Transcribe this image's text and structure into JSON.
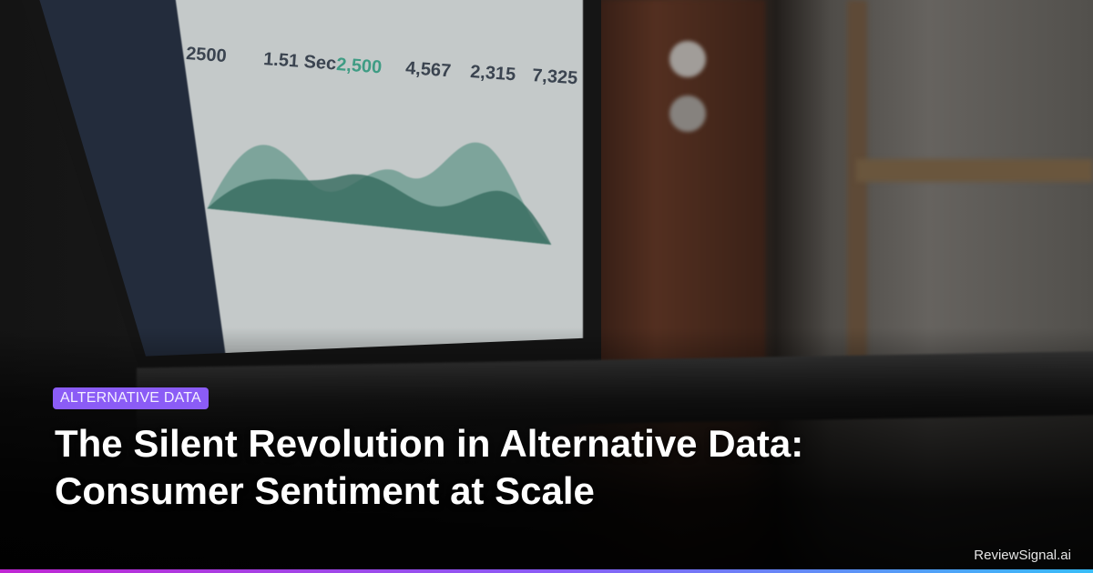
{
  "category_badge": "ALTERNATIVE DATA",
  "title_line1": "The Silent Revolution in Alternative Data:",
  "title_line2": "Consumer Sentiment at Scale",
  "brand": "ReviewSignal.ai",
  "photo_screen_kpis": [
    "2500",
    "1.51 Sec",
    "2,500",
    "4,567",
    "2,315",
    "7,325"
  ],
  "colors": {
    "badge": "#8b5cf6",
    "accent_bar": [
      "#c026d3",
      "#8b5cf6",
      "#38bdf8"
    ]
  }
}
